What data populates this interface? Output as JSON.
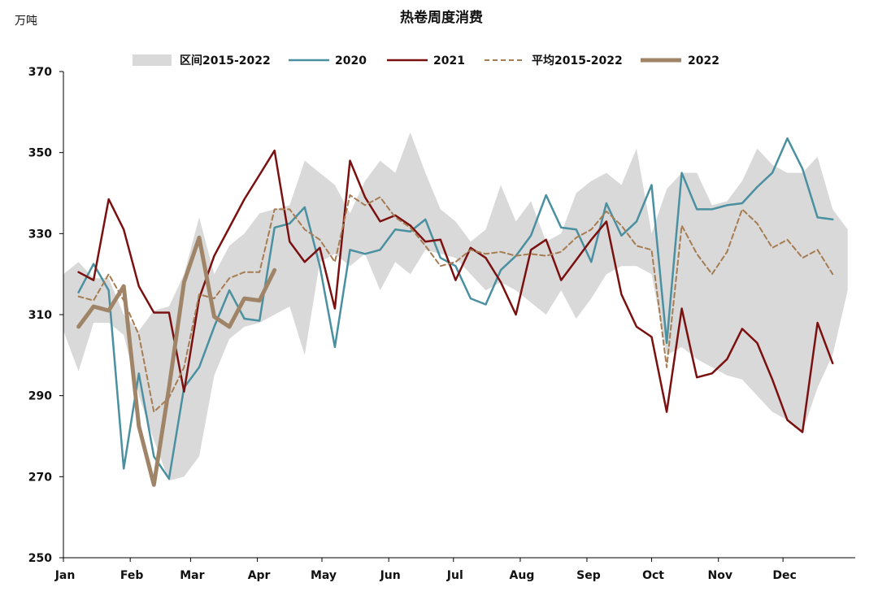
{
  "chart_data": {
    "type": "line",
    "title": "热卷周度消费",
    "unit_label": "万吨",
    "ylim": [
      250,
      370
    ],
    "yticks": [
      250,
      270,
      290,
      310,
      330,
      350,
      370
    ],
    "x_range": [
      0,
      52.5
    ],
    "month_labels": [
      "Jan",
      "Feb",
      "Mar",
      "Apr",
      "May",
      "Jun",
      "Jul",
      "Aug",
      "Sep",
      "Oct",
      "Nov",
      "Dec"
    ],
    "month_starts": [
      0,
      4.43,
      8.43,
      12.86,
      17.14,
      21.57,
      25.86,
      30.29,
      34.71,
      39.0,
      43.43,
      47.71
    ],
    "grid": false,
    "legend": {
      "placement": "top",
      "items": [
        {
          "label": "区间2015-2022",
          "key": "band"
        },
        {
          "label": "2020",
          "key": "s2020"
        },
        {
          "label": "2021",
          "key": "s2021"
        },
        {
          "label": "平均2015-2022",
          "key": "avg"
        },
        {
          "label": "2022",
          "key": "s2022"
        }
      ]
    },
    "band": {
      "name": "区间2015-2022",
      "color": "#d9d9d9",
      "upper": [
        320,
        323,
        319,
        319,
        310,
        306,
        311,
        312,
        320,
        334,
        320,
        327,
        330,
        335,
        336,
        337,
        348,
        345,
        342,
        335,
        343,
        348,
        345,
        355,
        345,
        336,
        333,
        328,
        331,
        342,
        333,
        338,
        328,
        330,
        340,
        343,
        345,
        342,
        351,
        330,
        341,
        345,
        345,
        337,
        338,
        343,
        351,
        347,
        345,
        345,
        349,
        336,
        331
      ],
      "lower": [
        306,
        296,
        308,
        308,
        305,
        290,
        279,
        269,
        270,
        275,
        295,
        304,
        307,
        308,
        310,
        312,
        300,
        323,
        325,
        322,
        325,
        316,
        323,
        320,
        326,
        325,
        324,
        320,
        316,
        318,
        316,
        313,
        310,
        316,
        309,
        314,
        320,
        322,
        322,
        320,
        300,
        302,
        299,
        297,
        295,
        294,
        290,
        286,
        284,
        281,
        292,
        300,
        316
      ]
    },
    "series": [
      {
        "name": "2020",
        "key": "s2020",
        "color": "#4a90a0",
        "width": 2.5,
        "dash": "",
        "x0": 1,
        "values": [
          315.5,
          322.5,
          316,
          272,
          295.5,
          275,
          269.5,
          292,
          297,
          307,
          316,
          309,
          308.5,
          331.5,
          332.5,
          336.5,
          322,
          302,
          326,
          325,
          326,
          331,
          330.5,
          333.5,
          324,
          322,
          314,
          312.5,
          321,
          324.5,
          329.5,
          339.5,
          331.5,
          331,
          323,
          337.5,
          329.5,
          333,
          342,
          303,
          345,
          336,
          336,
          337,
          337.5,
          341.5,
          345,
          353.5,
          346,
          334,
          333.5
        ]
      },
      {
        "name": "2021",
        "key": "s2021",
        "color": "#7b1010",
        "width": 2.5,
        "dash": "",
        "x0": 1,
        "values": [
          320.5,
          318.5,
          338.5,
          331,
          317,
          310.5,
          310.5,
          291,
          314,
          324.5,
          331.5,
          338.5,
          344.5,
          350.5,
          328,
          323,
          326.5,
          311.5,
          348,
          339,
          333,
          334.5,
          332,
          328,
          328.5,
          318.5,
          326.5,
          324,
          318,
          310,
          326,
          328.5,
          318.5,
          323.5,
          328.5,
          333,
          315,
          307,
          304.5,
          286,
          311.5,
          294.5,
          295.5,
          299,
          306.5,
          303,
          294,
          284,
          281,
          308,
          298
        ]
      },
      {
        "name": "平均2015-2022",
        "key": "avg",
        "color": "#a67c52",
        "width": 2,
        "dash": "6,4",
        "x0": 1,
        "values": [
          314.5,
          313.5,
          320,
          313.5,
          305,
          286,
          289.5,
          297,
          315,
          314,
          319,
          320.5,
          320.5,
          336,
          336,
          331,
          328.5,
          323,
          339.5,
          337,
          339,
          334,
          331.5,
          327,
          322,
          323,
          326,
          325,
          325.5,
          324.5,
          325,
          324.5,
          325.5,
          329,
          331,
          335.5,
          332,
          327,
          326,
          297,
          332,
          325,
          320,
          325.5,
          336,
          332.5,
          326.5,
          328.5,
          324,
          326,
          320
        ]
      },
      {
        "name": "2022",
        "key": "s2022",
        "color": "#a08468",
        "width": 5,
        "dash": "",
        "x0": 1,
        "values": [
          307,
          312,
          311,
          317,
          282.5,
          268,
          292,
          318,
          329,
          309.5,
          307,
          314,
          313.5,
          321
        ]
      }
    ]
  }
}
